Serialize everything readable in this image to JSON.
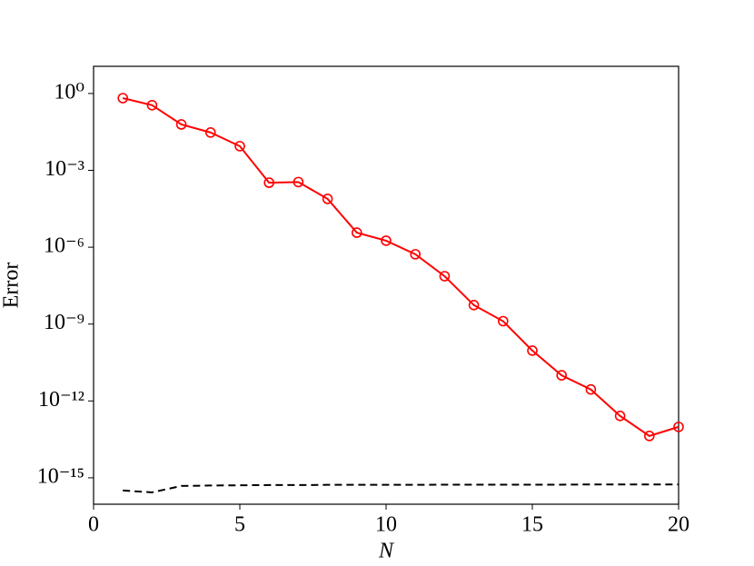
{
  "chart_data": {
    "type": "line",
    "x": [
      1,
      2,
      3,
      4,
      5,
      6,
      7,
      8,
      9,
      10,
      11,
      12,
      13,
      14,
      15,
      16,
      17,
      18,
      19,
      20
    ],
    "series": [
      {
        "color": "#ff0000",
        "marker": "circle",
        "linestyle": "solid",
        "values": [
          0.66,
          0.35,
          0.062,
          0.03,
          0.0088,
          0.00033,
          0.00035,
          7.7e-05,
          3.7e-06,
          1.8e-06,
          5.3e-07,
          7.4e-08,
          5.5e-09,
          1.3e-09,
          9.2e-11,
          1e-11,
          2.8e-12,
          2.6e-13,
          4.3e-14,
          9.7e-14
        ]
      },
      {
        "color": "#000000",
        "marker": "none",
        "linestyle": "dashed",
        "values": [
          3.2e-16,
          2.7e-16,
          4.8e-16,
          5e-16,
          5.1e-16,
          5.2e-16,
          5.2e-16,
          5.3e-16,
          5.3e-16,
          5.3e-16,
          5.3e-16,
          5.4e-16,
          5.4e-16,
          5.4e-16,
          5.4e-16,
          5.4e-16,
          5.5e-16,
          5.5e-16,
          5.5e-16,
          5.5e-16
        ]
      }
    ],
    "xlabel": "N",
    "ylabel": "Error",
    "xlim": [
      0,
      20
    ],
    "xticks": [
      0,
      5,
      10,
      15,
      20
    ],
    "ylim": [
      9.3e-17,
      11.5
    ],
    "ylog": true,
    "yticks": [
      {
        "value": 1,
        "label": "10⁰"
      },
      {
        "value": 0.001,
        "label": "10⁻³"
      },
      {
        "value": 1e-06,
        "label": "10⁻⁶"
      },
      {
        "value": 1e-09,
        "label": "10⁻⁹"
      },
      {
        "value": 1e-12,
        "label": "10⁻¹²"
      },
      {
        "value": 1e-15,
        "label": "10⁻¹⁵"
      }
    ],
    "grid": false
  }
}
